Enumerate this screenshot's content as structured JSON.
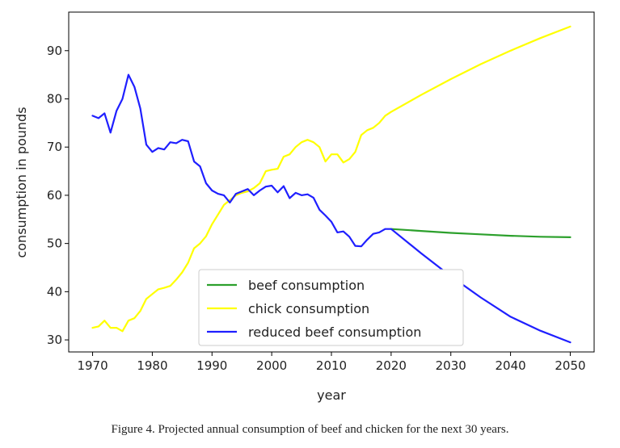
{
  "caption": "Figure 4. Projected annual consumption of beef and chicken for the next 30 years.",
  "chart_data": {
    "type": "line",
    "title": "",
    "xlabel": "year",
    "ylabel": "consumption in pounds",
    "xlim": [
      1966,
      2054
    ],
    "ylim": [
      27.5,
      98
    ],
    "xticks": [
      1970,
      1980,
      1990,
      2000,
      2010,
      2020,
      2030,
      2040,
      2050
    ],
    "yticks": [
      30,
      40,
      50,
      60,
      70,
      80,
      90
    ],
    "grid": false,
    "legend_position": "lower-center",
    "series": [
      {
        "name": "beef consumption",
        "color": "#2ca02c",
        "x": [
          2020,
          2025,
          2030,
          2035,
          2040,
          2045,
          2050
        ],
        "y": [
          53.0,
          52.6,
          52.2,
          51.9,
          51.6,
          51.4,
          51.3
        ]
      },
      {
        "name": "chick consumption",
        "color": "#ffff00",
        "x": [
          1970,
          1971,
          1972,
          1973,
          1974,
          1975,
          1976,
          1977,
          1978,
          1979,
          1980,
          1981,
          1982,
          1983,
          1984,
          1985,
          1986,
          1987,
          1988,
          1989,
          1990,
          1991,
          1992,
          1993,
          1994,
          1995,
          1996,
          1997,
          1998,
          1999,
          2000,
          2001,
          2002,
          2003,
          2004,
          2005,
          2006,
          2007,
          2008,
          2009,
          2010,
          2011,
          2012,
          2013,
          2014,
          2015,
          2016,
          2017,
          2018,
          2019,
          2020,
          2025,
          2030,
          2035,
          2040,
          2045,
          2050
        ],
        "y": [
          32.5,
          32.8,
          34.0,
          32.5,
          32.5,
          31.8,
          34.0,
          34.5,
          36.0,
          38.5,
          39.5,
          40.5,
          40.8,
          41.2,
          42.5,
          44.0,
          46.0,
          49.0,
          50.0,
          51.5,
          54.0,
          56.0,
          58.0,
          59.0,
          60.0,
          60.5,
          60.8,
          61.5,
          62.5,
          65.0,
          65.3,
          65.5,
          68.0,
          68.5,
          70.0,
          71.0,
          71.5,
          71.0,
          70.0,
          67.0,
          68.5,
          68.5,
          66.8,
          67.5,
          69.0,
          72.5,
          73.5,
          74.0,
          75.0,
          76.5,
          77.3,
          80.8,
          84.1,
          87.2,
          90.0,
          92.6,
          95.0
        ]
      },
      {
        "name": "reduced beef consumption",
        "color": "#1f1fff",
        "x": [
          1970,
          1971,
          1972,
          1973,
          1974,
          1975,
          1976,
          1977,
          1978,
          1979,
          1980,
          1981,
          1982,
          1983,
          1984,
          1985,
          1986,
          1987,
          1988,
          1989,
          1990,
          1991,
          1992,
          1993,
          1994,
          1995,
          1996,
          1997,
          1998,
          1999,
          2000,
          2001,
          2002,
          2003,
          2004,
          2005,
          2006,
          2007,
          2008,
          2009,
          2010,
          2011,
          2012,
          2013,
          2014,
          2015,
          2016,
          2017,
          2018,
          2019,
          2020,
          2025,
          2030,
          2035,
          2040,
          2045,
          2050
        ],
        "y": [
          76.5,
          76.0,
          77.0,
          73.0,
          77.5,
          80.0,
          85.0,
          82.5,
          78.0,
          70.5,
          69.0,
          69.8,
          69.5,
          71.0,
          70.8,
          71.5,
          71.2,
          67.0,
          66.0,
          62.5,
          61.0,
          60.3,
          60.0,
          58.5,
          60.3,
          60.8,
          61.3,
          60.0,
          61.0,
          61.8,
          62.0,
          60.6,
          61.9,
          59.4,
          60.5,
          60.0,
          60.2,
          59.5,
          57.0,
          55.8,
          54.5,
          52.3,
          52.5,
          51.4,
          49.5,
          49.4,
          50.8,
          52.0,
          52.3,
          53.0,
          53.0,
          48.0,
          43.2,
          38.8,
          34.8,
          31.9,
          29.5
        ]
      }
    ]
  }
}
